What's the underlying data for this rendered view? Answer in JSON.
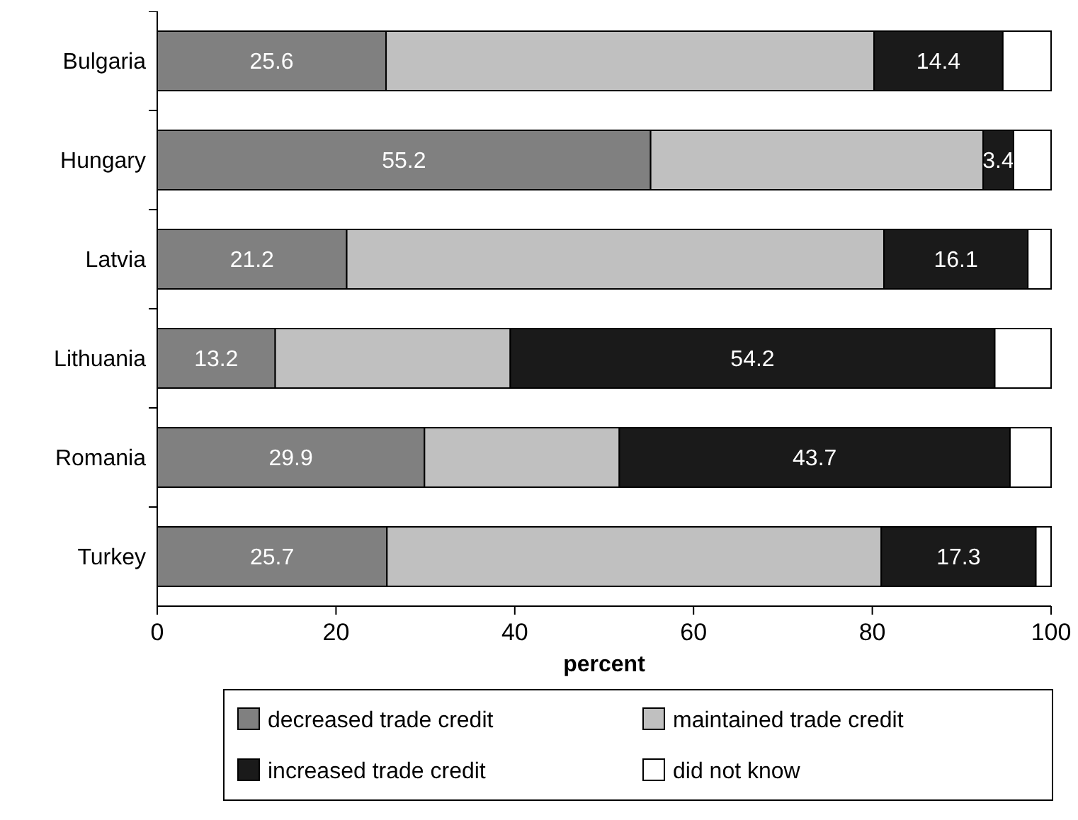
{
  "chart_data": {
    "type": "bar",
    "orientation": "horizontal",
    "stacked": true,
    "xlabel": "percent",
    "categories": [
      "Bulgaria",
      "Hungary",
      "Latvia",
      "Lithuania",
      "Romania",
      "Turkey"
    ],
    "series": [
      {
        "name": "decreased trade credit",
        "color": "#808080",
        "values": [
          25.6,
          55.2,
          21.2,
          13.2,
          29.9,
          25.7
        ],
        "value_labels": [
          "25.6",
          "55.2",
          "21.2",
          "13.2",
          "29.9",
          "25.7"
        ]
      },
      {
        "name": "maintained trade credit",
        "color": "#c0c0c0",
        "values": [
          54.6,
          37.2,
          60.1,
          26.3,
          21.8,
          55.3
        ]
      },
      {
        "name": "increased trade credit",
        "color": "#1a1a1a",
        "values": [
          14.4,
          3.4,
          16.1,
          54.2,
          43.7,
          17.3
        ],
        "value_labels": [
          "14.4",
          "3.4",
          "16.1",
          "54.2",
          "43.7",
          "17.3"
        ]
      },
      {
        "name": "did not know",
        "color": "#ffffff",
        "values": [
          5.4,
          4.2,
          2.6,
          6.3,
          4.6,
          1.7
        ]
      }
    ],
    "xlim": [
      0,
      100
    ],
    "xticks": [
      0,
      20,
      40,
      60,
      80,
      100
    ],
    "legend": "bottom",
    "grid": false
  }
}
